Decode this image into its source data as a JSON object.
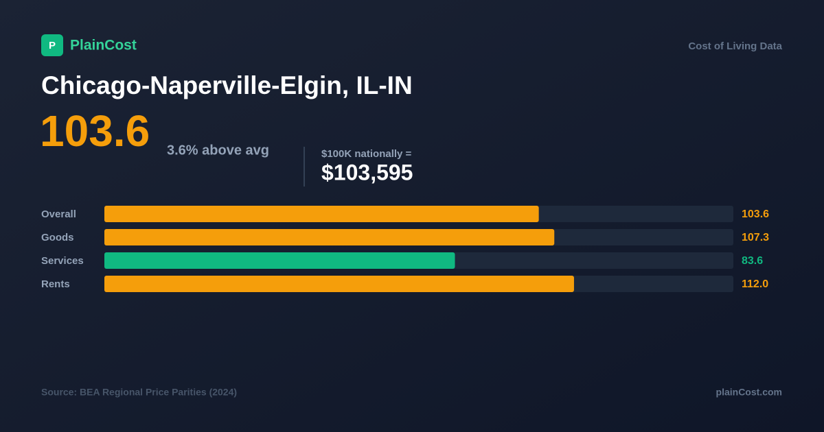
{
  "header": {
    "logo_letter": "P",
    "brand": "PlainCost",
    "tagline": "Cost of Living Data"
  },
  "title": "Chicago-Naperville-Elgin, IL-IN",
  "headline": {
    "index": "103.6",
    "comparison": "3.6% above avg",
    "equivalent_label": "$100K nationally =",
    "equivalent_value": "$103,595"
  },
  "chart_data": {
    "type": "bar",
    "orientation": "horizontal",
    "categories": [
      "Overall",
      "Goods",
      "Services",
      "Rents"
    ],
    "values": [
      103.6,
      107.3,
      83.6,
      112.0
    ],
    "value_labels": [
      "103.6",
      "107.3",
      "83.6",
      "112.0"
    ],
    "colors": [
      "#f59e0b",
      "#f59e0b",
      "#10b981",
      "#f59e0b"
    ],
    "xlim": [
      0,
      150
    ]
  },
  "footer": {
    "source": "Source: BEA Regional Price Parities (2024)",
    "site": "plainCost.com"
  }
}
